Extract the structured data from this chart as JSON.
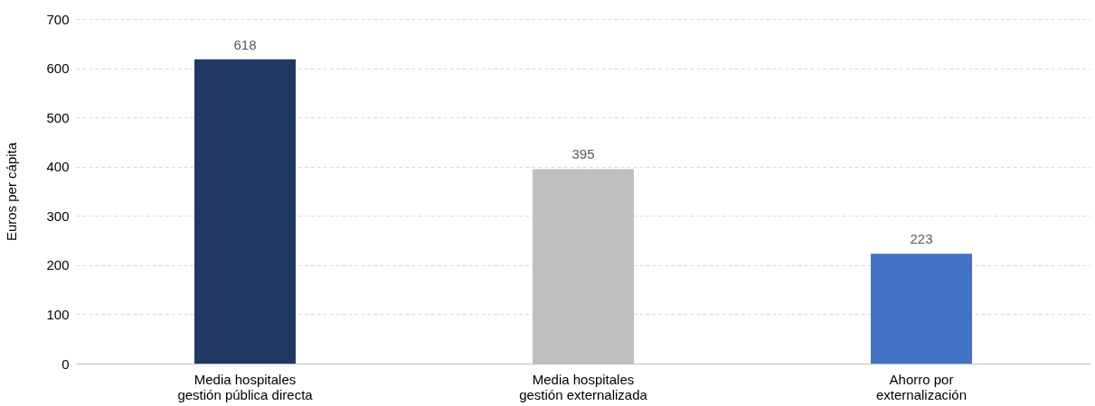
{
  "chart_data": {
    "type": "bar",
    "ylabel": "Euros per cápita",
    "categories": [
      "Media hospitales\ngestión pública directa",
      "Media hospitales\ngestión externalizada",
      "Ahorro por\nexternalización"
    ],
    "values": [
      618,
      395,
      223
    ],
    "colors": [
      "#203864",
      "#bfbfbf",
      "#4472c4"
    ],
    "ylim": [
      0,
      700
    ],
    "yticks": [
      0,
      100,
      200,
      300,
      400,
      500,
      600,
      700
    ],
    "grid": "y",
    "data_labels": true
  }
}
